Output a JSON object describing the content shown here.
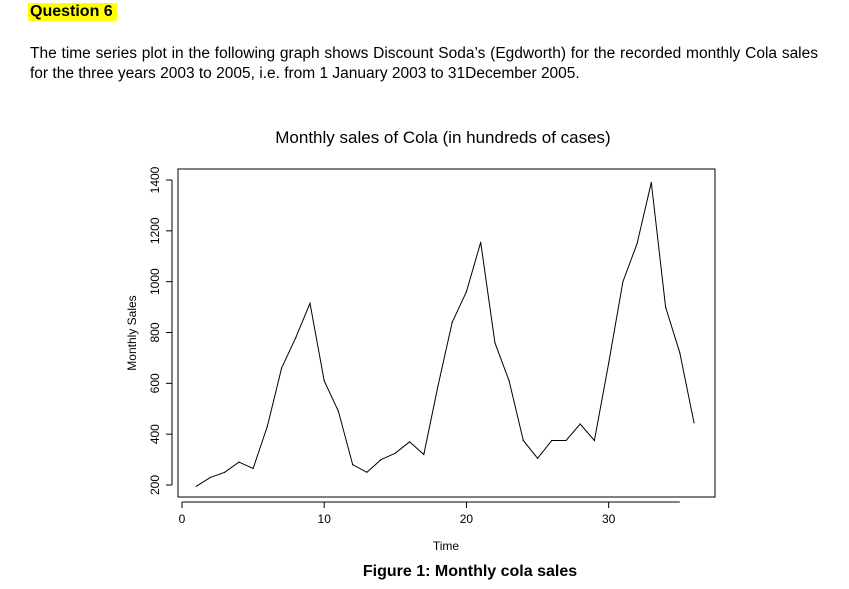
{
  "question_label": "Question 6",
  "intro_text": "The time series plot in the following graph shows Discount Soda’s (Egdworth) for the recorded monthly Cola sales for the three years 2003 to 2005, i.e.  from 1 January 2003 to 31December 2005.",
  "figure_caption": "Figure 1: Monthly cola sales",
  "chart_data": {
    "type": "line",
    "title": "Monthly sales of Cola (in hundreds of cases)",
    "xlabel": "Time",
    "ylabel": "Monthly Sales",
    "xlim": [
      0,
      36
    ],
    "ylim": [
      190,
      1410
    ],
    "x_ticks": [
      0,
      10,
      20,
      30
    ],
    "y_ticks": [
      200,
      400,
      600,
      800,
      1000,
      1200,
      1400
    ],
    "grid": false,
    "series": [
      {
        "name": "Monthly Sales",
        "x": [
          1,
          2,
          3,
          4,
          5,
          6,
          7,
          8,
          9,
          10,
          11,
          12,
          13,
          14,
          15,
          16,
          17,
          18,
          19,
          20,
          21,
          22,
          23,
          24,
          25,
          26,
          27,
          28,
          29,
          30,
          31,
          32,
          33,
          34,
          35,
          36
        ],
        "values": [
          195,
          230,
          250,
          290,
          265,
          430,
          660,
          780,
          915,
          610,
          490,
          280,
          250,
          300,
          325,
          370,
          320,
          590,
          840,
          960,
          1155,
          760,
          610,
          375,
          305,
          375,
          375,
          440,
          375,
          680,
          1000,
          1150,
          1390,
          900,
          720,
          445
        ]
      }
    ]
  }
}
